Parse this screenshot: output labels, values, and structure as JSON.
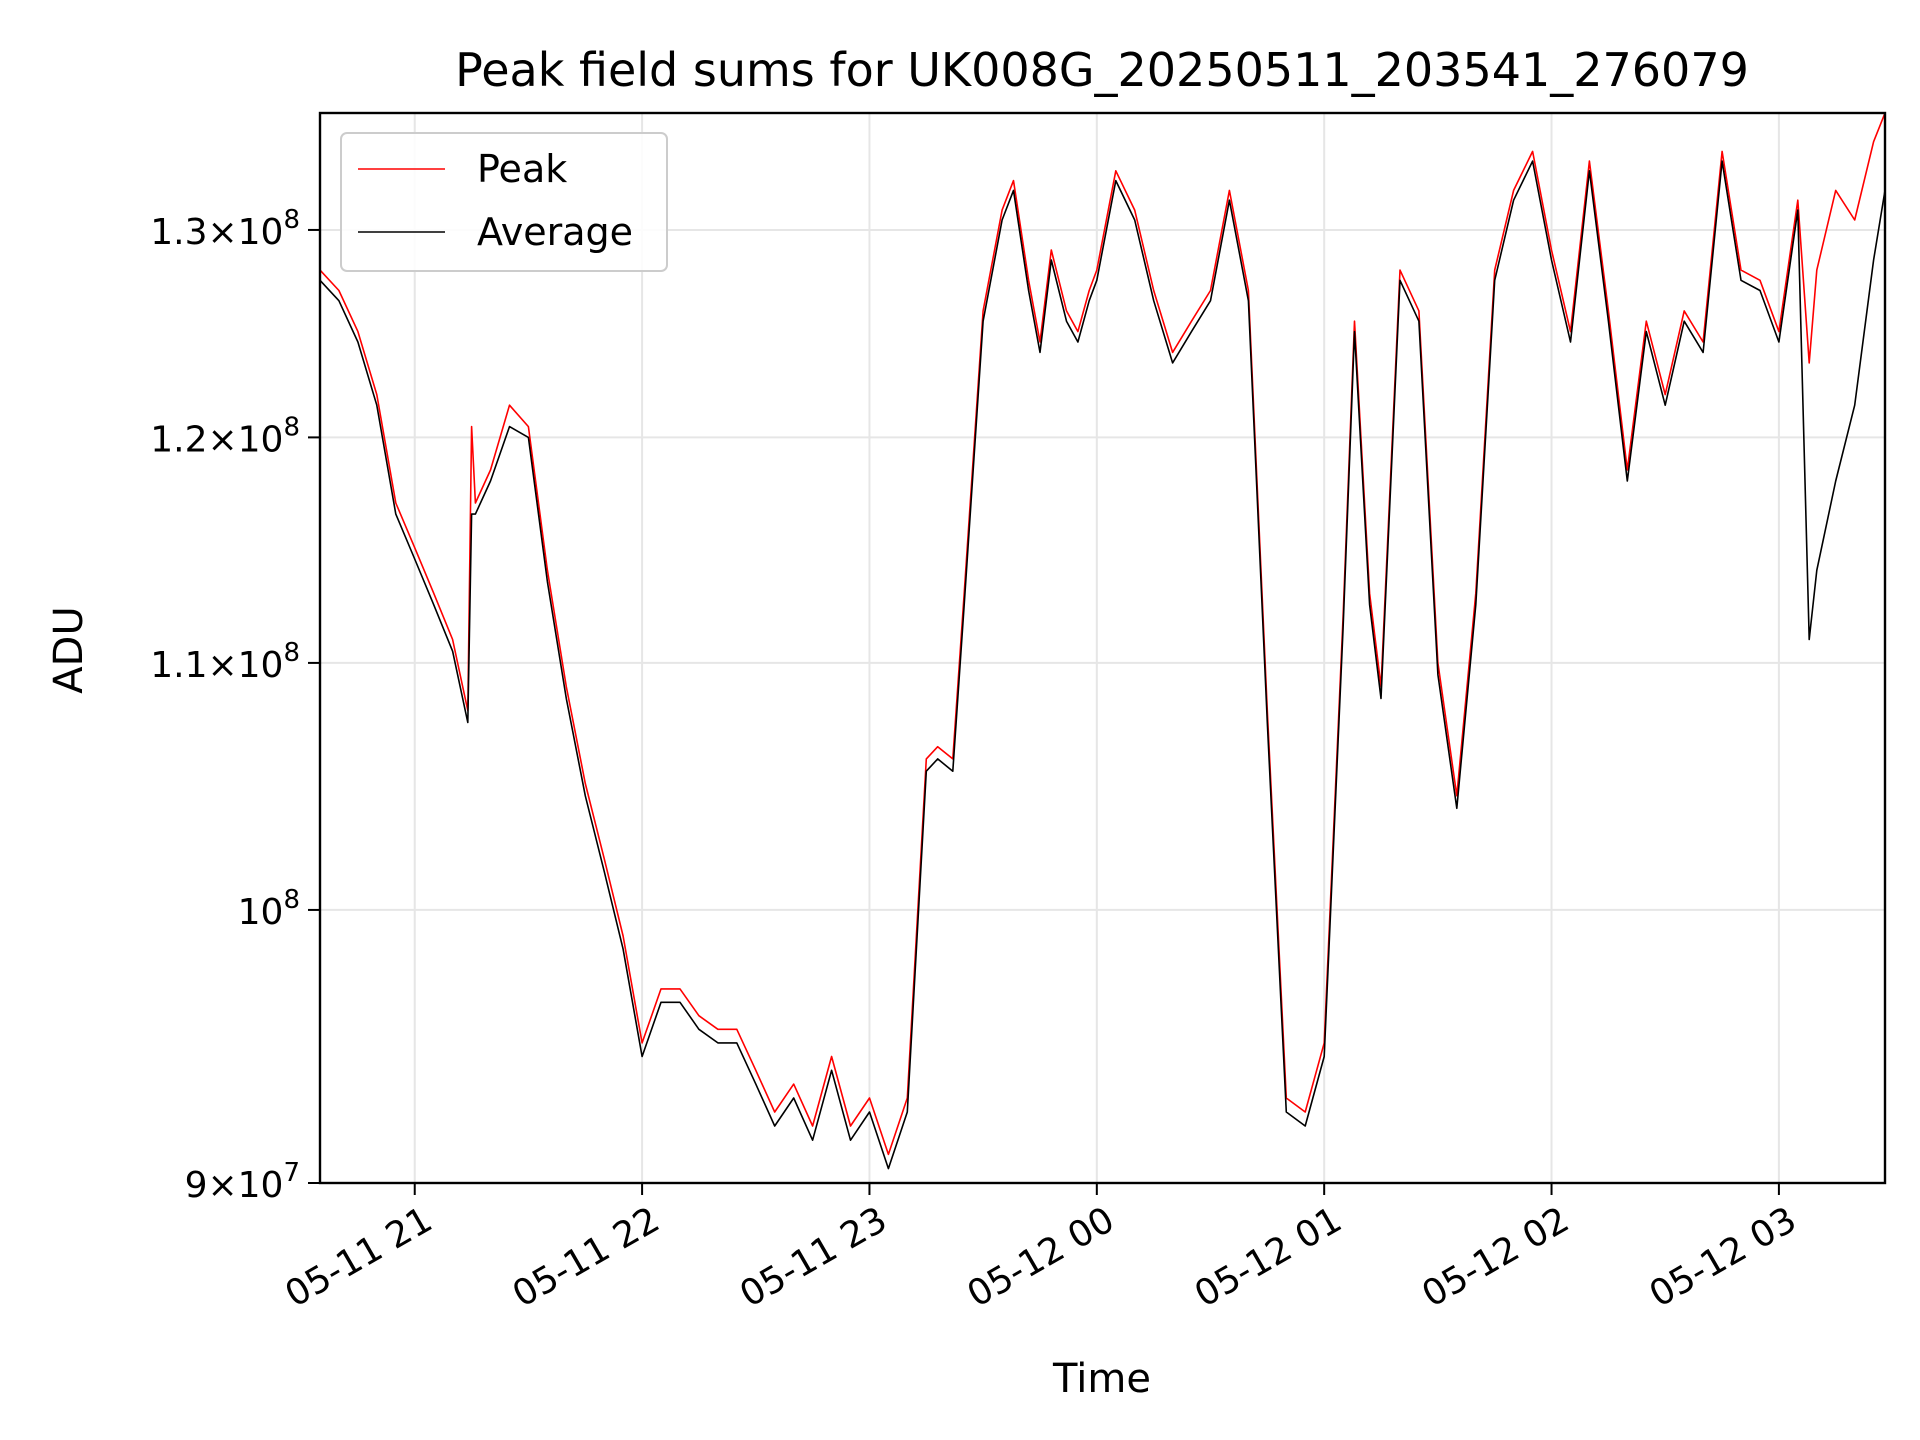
{
  "chart_data": {
    "type": "line",
    "title": "Peak field sums for UK008G_20250511_203541_276079",
    "xlabel": "Time",
    "ylabel": "ADU",
    "yscale": "log",
    "xlim": [
      "2025-05-11 20:35",
      "2025-05-12 03:28"
    ],
    "ylim": [
      90000000,
      136000000
    ],
    "grid": true,
    "legend_position": "upper left",
    "xticks": [
      {
        "time": "2025-05-11 21:00",
        "label": "05-11 21"
      },
      {
        "time": "2025-05-11 22:00",
        "label": "05-11 22"
      },
      {
        "time": "2025-05-11 23:00",
        "label": "05-11 23"
      },
      {
        "time": "2025-05-12 00:00",
        "label": "05-12 00"
      },
      {
        "time": "2025-05-12 01:00",
        "label": "05-12 01"
      },
      {
        "time": "2025-05-12 02:00",
        "label": "05-12 02"
      },
      {
        "time": "2025-05-12 03:00",
        "label": "05-12 03"
      }
    ],
    "yticks": [
      {
        "value": 90000000,
        "mantissa": "9",
        "exponent": "7"
      },
      {
        "value": 100000000,
        "mantissa": "",
        "exponent": "8"
      },
      {
        "value": 110000000,
        "mantissa": "1.1",
        "exponent": "8"
      },
      {
        "value": 120000000,
        "mantissa": "1.2",
        "exponent": "8"
      },
      {
        "value": 130000000,
        "mantissa": "1.3",
        "exponent": "8"
      }
    ],
    "series": [
      {
        "name": "Peak",
        "color": "#ff0000",
        "points": [
          [
            "2025-05-11 20:35",
            128000000
          ],
          [
            "2025-05-11 20:40",
            127000000
          ],
          [
            "2025-05-11 20:45",
            125000000
          ],
          [
            "2025-05-11 20:50",
            122000000
          ],
          [
            "2025-05-11 20:55",
            117000000
          ],
          [
            "2025-05-11 21:00",
            115000000
          ],
          [
            "2025-05-11 21:05",
            113000000
          ],
          [
            "2025-05-11 21:10",
            111000000
          ],
          [
            "2025-05-11 21:14",
            108000000
          ],
          [
            "2025-05-11 21:15",
            120500000
          ],
          [
            "2025-05-11 21:16",
            117000000
          ],
          [
            "2025-05-11 21:20",
            118500000
          ],
          [
            "2025-05-11 21:25",
            121500000
          ],
          [
            "2025-05-11 21:30",
            120500000
          ],
          [
            "2025-05-11 21:35",
            114000000
          ],
          [
            "2025-05-11 21:40",
            109000000
          ],
          [
            "2025-05-11 21:45",
            105000000
          ],
          [
            "2025-05-11 21:50",
            102000000
          ],
          [
            "2025-05-11 21:55",
            99000000
          ],
          [
            "2025-05-11 22:00",
            95000000
          ],
          [
            "2025-05-11 22:05",
            97000000
          ],
          [
            "2025-05-11 22:10",
            97000000
          ],
          [
            "2025-05-11 22:15",
            96000000
          ],
          [
            "2025-05-11 22:20",
            95500000
          ],
          [
            "2025-05-11 22:25",
            95500000
          ],
          [
            "2025-05-11 22:30",
            94000000
          ],
          [
            "2025-05-11 22:35",
            92500000
          ],
          [
            "2025-05-11 22:40",
            93500000
          ],
          [
            "2025-05-11 22:45",
            92000000
          ],
          [
            "2025-05-11 22:50",
            94500000
          ],
          [
            "2025-05-11 22:55",
            92000000
          ],
          [
            "2025-05-11 23:00",
            93000000
          ],
          [
            "2025-05-11 23:05",
            91000000
          ],
          [
            "2025-05-11 23:10",
            93000000
          ],
          [
            "2025-05-11 23:15",
            106000000
          ],
          [
            "2025-05-11 23:18",
            106500000
          ],
          [
            "2025-05-11 23:22",
            106000000
          ],
          [
            "2025-05-11 23:25",
            113000000
          ],
          [
            "2025-05-11 23:30",
            126000000
          ],
          [
            "2025-05-11 23:35",
            131000000
          ],
          [
            "2025-05-11 23:38",
            132500000
          ],
          [
            "2025-05-11 23:42",
            127500000
          ],
          [
            "2025-05-11 23:45",
            124500000
          ],
          [
            "2025-05-11 23:48",
            129000000
          ],
          [
            "2025-05-11 23:52",
            126000000
          ],
          [
            "2025-05-11 23:55",
            125000000
          ],
          [
            "2025-05-11 23:58",
            127000000
          ],
          [
            "2025-05-12 00:00",
            128000000
          ],
          [
            "2025-05-12 00:05",
            133000000
          ],
          [
            "2025-05-12 00:10",
            131000000
          ],
          [
            "2025-05-12 00:15",
            127000000
          ],
          [
            "2025-05-12 00:20",
            124000000
          ],
          [
            "2025-05-12 00:25",
            125500000
          ],
          [
            "2025-05-12 00:30",
            127000000
          ],
          [
            "2025-05-12 00:35",
            132000000
          ],
          [
            "2025-05-12 00:40",
            127000000
          ],
          [
            "2025-05-12 00:45",
            108000000
          ],
          [
            "2025-05-12 00:50",
            93000000
          ],
          [
            "2025-05-12 00:55",
            92500000
          ],
          [
            "2025-05-12 01:00",
            95000000
          ],
          [
            "2025-05-12 01:05",
            112000000
          ],
          [
            "2025-05-12 01:08",
            125500000
          ],
          [
            "2025-05-12 01:12",
            113000000
          ],
          [
            "2025-05-12 01:15",
            109000000
          ],
          [
            "2025-05-12 01:20",
            128000000
          ],
          [
            "2025-05-12 01:25",
            126000000
          ],
          [
            "2025-05-12 01:30",
            110000000
          ],
          [
            "2025-05-12 01:35",
            104500000
          ],
          [
            "2025-05-12 01:40",
            113000000
          ],
          [
            "2025-05-12 01:45",
            128000000
          ],
          [
            "2025-05-12 01:50",
            132000000
          ],
          [
            "2025-05-12 01:55",
            134000000
          ],
          [
            "2025-05-12 02:00",
            129000000
          ],
          [
            "2025-05-12 02:05",
            125000000
          ],
          [
            "2025-05-12 02:10",
            133500000
          ],
          [
            "2025-05-12 02:15",
            126000000
          ],
          [
            "2025-05-12 02:20",
            118500000
          ],
          [
            "2025-05-12 02:25",
            125500000
          ],
          [
            "2025-05-12 02:30",
            122000000
          ],
          [
            "2025-05-12 02:35",
            126000000
          ],
          [
            "2025-05-12 02:40",
            124500000
          ],
          [
            "2025-05-12 02:45",
            134000000
          ],
          [
            "2025-05-12 02:50",
            128000000
          ],
          [
            "2025-05-12 02:55",
            127500000
          ],
          [
            "2025-05-12 03:00",
            125000000
          ],
          [
            "2025-05-12 03:05",
            131500000
          ],
          [
            "2025-05-12 03:08",
            123500000
          ],
          [
            "2025-05-12 03:10",
            128000000
          ],
          [
            "2025-05-12 03:15",
            132000000
          ],
          [
            "2025-05-12 03:20",
            130500000
          ],
          [
            "2025-05-12 03:25",
            134500000
          ],
          [
            "2025-05-12 03:28",
            136000000
          ]
        ]
      },
      {
        "name": "Average",
        "color": "#000000",
        "points": [
          [
            "2025-05-11 20:35",
            127500000
          ],
          [
            "2025-05-11 20:40",
            126500000
          ],
          [
            "2025-05-11 20:45",
            124500000
          ],
          [
            "2025-05-11 20:50",
            121500000
          ],
          [
            "2025-05-11 20:55",
            116500000
          ],
          [
            "2025-05-11 21:00",
            114500000
          ],
          [
            "2025-05-11 21:05",
            112500000
          ],
          [
            "2025-05-11 21:10",
            110500000
          ],
          [
            "2025-05-11 21:14",
            107500000
          ],
          [
            "2025-05-11 21:15",
            116500000
          ],
          [
            "2025-05-11 21:16",
            116500000
          ],
          [
            "2025-05-11 21:20",
            118000000
          ],
          [
            "2025-05-11 21:25",
            120500000
          ],
          [
            "2025-05-11 21:30",
            120000000
          ],
          [
            "2025-05-11 21:35",
            113500000
          ],
          [
            "2025-05-11 21:40",
            108500000
          ],
          [
            "2025-05-11 21:45",
            104500000
          ],
          [
            "2025-05-11 21:50",
            101500000
          ],
          [
            "2025-05-11 21:55",
            98500000
          ],
          [
            "2025-05-11 22:00",
            94500000
          ],
          [
            "2025-05-11 22:05",
            96500000
          ],
          [
            "2025-05-11 22:10",
            96500000
          ],
          [
            "2025-05-11 22:15",
            95500000
          ],
          [
            "2025-05-11 22:20",
            95000000
          ],
          [
            "2025-05-11 22:25",
            95000000
          ],
          [
            "2025-05-11 22:30",
            93500000
          ],
          [
            "2025-05-11 22:35",
            92000000
          ],
          [
            "2025-05-11 22:40",
            93000000
          ],
          [
            "2025-05-11 22:45",
            91500000
          ],
          [
            "2025-05-11 22:50",
            94000000
          ],
          [
            "2025-05-11 22:55",
            91500000
          ],
          [
            "2025-05-11 23:00",
            92500000
          ],
          [
            "2025-05-11 23:05",
            90500000
          ],
          [
            "2025-05-11 23:10",
            92500000
          ],
          [
            "2025-05-11 23:15",
            105500000
          ],
          [
            "2025-05-11 23:18",
            106000000
          ],
          [
            "2025-05-11 23:22",
            105500000
          ],
          [
            "2025-05-11 23:25",
            112500000
          ],
          [
            "2025-05-11 23:30",
            125500000
          ],
          [
            "2025-05-11 23:35",
            130500000
          ],
          [
            "2025-05-11 23:38",
            132000000
          ],
          [
            "2025-05-11 23:42",
            127000000
          ],
          [
            "2025-05-11 23:45",
            124000000
          ],
          [
            "2025-05-11 23:48",
            128500000
          ],
          [
            "2025-05-11 23:52",
            125500000
          ],
          [
            "2025-05-11 23:55",
            124500000
          ],
          [
            "2025-05-11 23:58",
            126500000
          ],
          [
            "2025-05-12 00:00",
            127500000
          ],
          [
            "2025-05-12 00:05",
            132500000
          ],
          [
            "2025-05-12 00:10",
            130500000
          ],
          [
            "2025-05-12 00:15",
            126500000
          ],
          [
            "2025-05-12 00:20",
            123500000
          ],
          [
            "2025-05-12 00:25",
            125000000
          ],
          [
            "2025-05-12 00:30",
            126500000
          ],
          [
            "2025-05-12 00:35",
            131500000
          ],
          [
            "2025-05-12 00:40",
            126500000
          ],
          [
            "2025-05-12 00:45",
            107500000
          ],
          [
            "2025-05-12 00:50",
            92500000
          ],
          [
            "2025-05-12 00:55",
            92000000
          ],
          [
            "2025-05-12 01:00",
            94500000
          ],
          [
            "2025-05-12 01:05",
            111500000
          ],
          [
            "2025-05-12 01:08",
            125000000
          ],
          [
            "2025-05-12 01:12",
            112500000
          ],
          [
            "2025-05-12 01:15",
            108500000
          ],
          [
            "2025-05-12 01:20",
            127500000
          ],
          [
            "2025-05-12 01:25",
            125500000
          ],
          [
            "2025-05-12 01:30",
            109500000
          ],
          [
            "2025-05-12 01:35",
            104000000
          ],
          [
            "2025-05-12 01:40",
            112500000
          ],
          [
            "2025-05-12 01:45",
            127500000
          ],
          [
            "2025-05-12 01:50",
            131500000
          ],
          [
            "2025-05-12 01:55",
            133500000
          ],
          [
            "2025-05-12 02:00",
            128500000
          ],
          [
            "2025-05-12 02:05",
            124500000
          ],
          [
            "2025-05-12 02:10",
            133000000
          ],
          [
            "2025-05-12 02:15",
            125500000
          ],
          [
            "2025-05-12 02:20",
            118000000
          ],
          [
            "2025-05-12 02:25",
            125000000
          ],
          [
            "2025-05-12 02:30",
            121500000
          ],
          [
            "2025-05-12 02:35",
            125500000
          ],
          [
            "2025-05-12 02:40",
            124000000
          ],
          [
            "2025-05-12 02:45",
            133500000
          ],
          [
            "2025-05-12 02:50",
            127500000
          ],
          [
            "2025-05-12 02:55",
            127000000
          ],
          [
            "2025-05-12 03:00",
            124500000
          ],
          [
            "2025-05-12 03:05",
            131000000
          ],
          [
            "2025-05-12 03:08",
            111000000
          ],
          [
            "2025-05-12 03:10",
            114000000
          ],
          [
            "2025-05-12 03:15",
            118000000
          ],
          [
            "2025-05-12 03:20",
            121500000
          ],
          [
            "2025-05-12 03:25",
            128500000
          ],
          [
            "2025-05-12 03:28",
            132000000
          ]
        ]
      }
    ]
  }
}
